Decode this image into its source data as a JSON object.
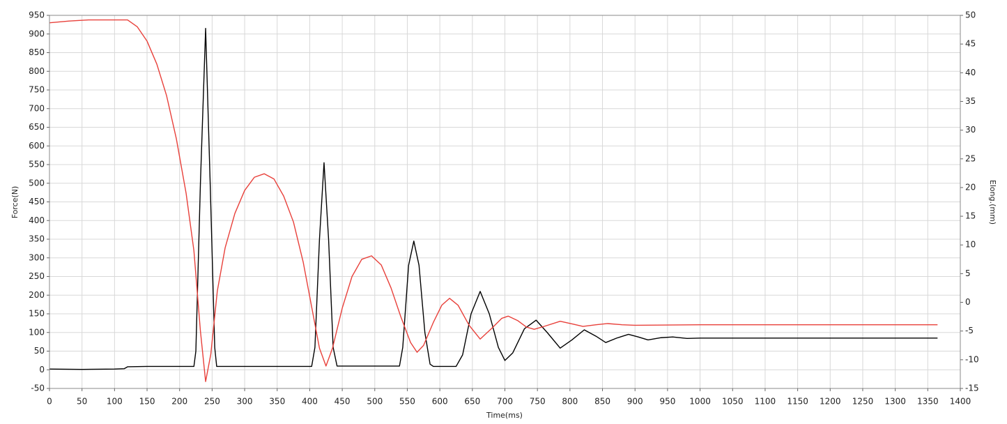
{
  "chart_data": {
    "type": "line",
    "xlabel": "Time(ms)",
    "ylabel": "Force(N)",
    "y2label": "Elong.(mm)",
    "xlim": [
      0,
      1400
    ],
    "ylim": [
      -50,
      950
    ],
    "y2lim": [
      -15,
      50
    ],
    "xticks": [
      0,
      50,
      100,
      150,
      200,
      250,
      300,
      350,
      400,
      450,
      500,
      550,
      600,
      650,
      700,
      750,
      800,
      850,
      900,
      950,
      1000,
      1050,
      1100,
      1150,
      1200,
      1250,
      1300,
      1350,
      1400
    ],
    "yticks": [
      -50,
      0,
      50,
      100,
      150,
      200,
      250,
      300,
      350,
      400,
      450,
      500,
      550,
      600,
      650,
      700,
      750,
      800,
      850,
      900,
      950
    ],
    "y2ticks": [
      -15,
      -10,
      -5,
      0,
      5,
      10,
      15,
      20,
      25,
      30,
      35,
      40,
      45,
      50
    ],
    "grid": true,
    "series": [
      {
        "color": "#000000",
        "x": [
          0,
          50,
          100,
          115,
          120,
          150,
          200,
          222,
          225,
          232,
          240,
          247,
          254,
          257,
          300,
          350,
          403,
          408,
          415,
          422,
          429,
          436,
          442,
          500,
          538,
          543,
          552,
          560,
          568,
          577,
          585,
          590,
          625,
          635,
          648,
          662,
          676,
          690,
          700,
          712,
          730,
          748,
          765,
          785,
          803,
          822,
          840,
          855,
          872,
          890,
          905,
          920,
          940,
          958,
          980,
          1000,
          1100,
          1200,
          1300,
          1365
        ],
        "values": [
          2,
          1,
          2,
          3,
          8,
          9,
          9,
          9,
          50,
          500,
          915,
          500,
          60,
          9,
          9,
          9,
          9,
          60,
          350,
          555,
          350,
          60,
          10,
          10,
          10,
          60,
          280,
          345,
          280,
          100,
          15,
          9,
          9,
          40,
          150,
          210,
          150,
          60,
          25,
          45,
          110,
          133,
          100,
          58,
          80,
          107,
          90,
          73,
          85,
          95,
          88,
          80,
          86,
          88,
          84,
          85,
          85,
          85,
          85,
          85
        ]
      },
      {
        "color": "#e8403a",
        "axis": "y2",
        "x": [
          0,
          30,
          60,
          120,
          135,
          150,
          165,
          180,
          195,
          210,
          222,
          232,
          240,
          248,
          258,
          270,
          285,
          300,
          315,
          330,
          345,
          360,
          375,
          390,
          405,
          415,
          425,
          435,
          450,
          465,
          480,
          495,
          510,
          525,
          540,
          555,
          565,
          575,
          590,
          603,
          615,
          628,
          645,
          662,
          680,
          695,
          705,
          720,
          733,
          745,
          760,
          785,
          805,
          820,
          840,
          858,
          880,
          900,
          1000,
          1100,
          1200,
          1300,
          1365
        ],
        "values": [
          48.7,
          49,
          49.2,
          49.2,
          48,
          45.5,
          41.5,
          36,
          28.5,
          19,
          9,
          -5,
          -13.8,
          -9,
          2,
          9.5,
          15.5,
          19.5,
          21.8,
          22.4,
          21.5,
          18.5,
          14,
          7,
          -2,
          -8,
          -11.1,
          -8,
          -1,
          4.5,
          7.5,
          8.1,
          6.5,
          2.5,
          -2.5,
          -7,
          -8.7,
          -7.5,
          -3.5,
          -0.5,
          0.7,
          -0.5,
          -4,
          -6.4,
          -4.5,
          -2.8,
          -2.4,
          -3.2,
          -4.3,
          -4.7,
          -4.2,
          -3.3,
          -3.8,
          -4.2,
          -3.9,
          -3.7,
          -3.9,
          -4,
          -3.9,
          -3.9,
          -3.9,
          -3.9,
          -3.9
        ]
      }
    ]
  }
}
